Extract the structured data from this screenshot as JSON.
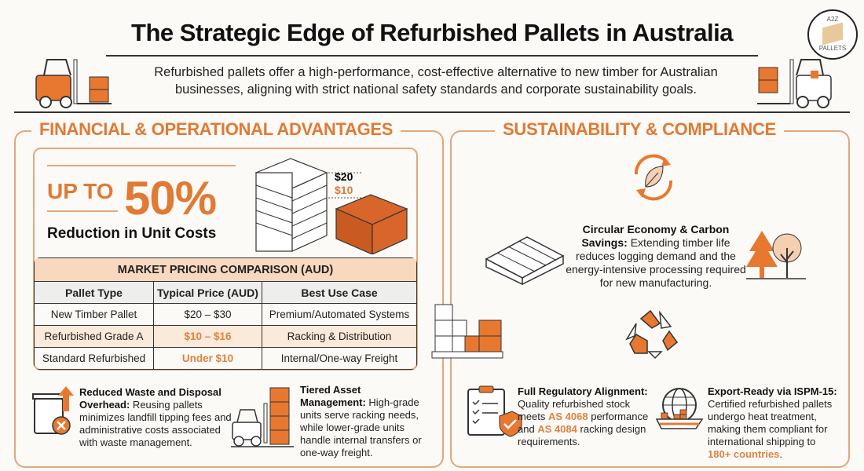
{
  "header": {
    "title": "The Strategic Edge of Refurbished Pallets in Australia",
    "subtitle": "Refurbished pallets offer a high-performance, cost-effective alternative to new timber for Australian businesses, aligning with strict national safety standards and corporate sustainability goals."
  },
  "logo": {
    "top": "A2Z",
    "bottom": "PALLETS"
  },
  "colors": {
    "accent": "#e07a35",
    "border": "#e3a77a",
    "table_header": "#f8d9bf"
  },
  "financial": {
    "heading": "FINANCIAL & OPERATIONAL ADVANTAGES",
    "up_to": "UP TO",
    "percent": "50%",
    "reduction": "Reduction in Unit Costs",
    "price_new": "$20",
    "price_refurb": "$10",
    "table": {
      "caption": "MARKET PRICING COMPARISON (AUD)",
      "columns": [
        "Pallet Type",
        "Typical Price (AUD)",
        "Best Use Case"
      ],
      "rows": [
        [
          "New Timber Pallet",
          "$20 – $30",
          "Premium/Automated Systems"
        ],
        [
          "Refurbished Grade A",
          "$10 – $16",
          "Racking & Distribution"
        ],
        [
          "Standard Refurbished",
          "Under $10",
          "Internal/One-way Freight"
        ]
      ]
    },
    "waste": {
      "title": "Reduced Waste and Disposal Overhead:",
      "body": " Reusing pallets minimizes landfill tipping fees and administrative costs associated with waste management."
    },
    "tiered": {
      "title": "Tiered Asset Management:",
      "body": " High-grade units serve racking needs, while lower-grade units handle internal transfers or one-way freight."
    }
  },
  "sustainability": {
    "heading": "SUSTAINABILITY & COMPLIANCE",
    "circular": {
      "title": "Circular Economy & Carbon Savings:",
      "body": " Extending timber life reduces logging demand and the energy-intensive processing required for new manufacturing."
    },
    "regulatory": {
      "title": "Full Regulatory Alignment:",
      "b1": " Quality refurbished stock meets ",
      "s1": "AS 4068",
      "b2": " performance and ",
      "s2": "AS 4084",
      "b3": " racking design requirements."
    },
    "export": {
      "title": "Export-Ready via ISPM-15:",
      "body": " Certified refurbished pallets undergo heat treatment, making them compliant for international shipping to ",
      "highlight": "180+ countries",
      "end": "."
    }
  }
}
